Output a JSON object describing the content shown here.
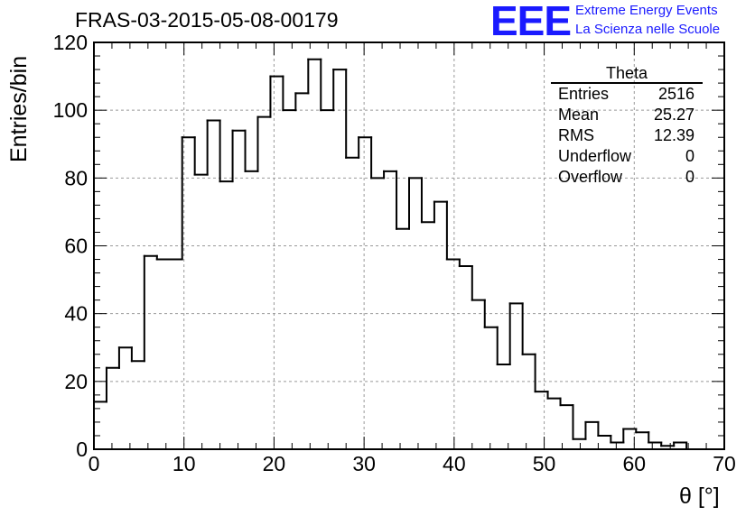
{
  "title": "FRAS-03-2015-05-08-00179",
  "logo": {
    "mark": "EEE",
    "line1": "Extreme Energy Events",
    "line2": "La Scienza nelle Scuole",
    "color": "#1a1aff"
  },
  "stats_box": {
    "title": "Theta",
    "rows": [
      {
        "label": "Entries",
        "value": "2516"
      },
      {
        "label": "Mean",
        "value": "25.27"
      },
      {
        "label": "RMS",
        "value": "12.39"
      },
      {
        "label": "Underflow",
        "value": "0"
      },
      {
        "label": "Overflow",
        "value": "0"
      }
    ]
  },
  "chart_data": {
    "type": "bar",
    "style": "step-histogram",
    "xlabel": "θ [°]",
    "ylabel": "Entries/bin",
    "xlim": [
      0,
      70
    ],
    "ylim": [
      0,
      120
    ],
    "bin_width": 1.4,
    "x_ticks": [
      0,
      10,
      20,
      30,
      40,
      50,
      60,
      70
    ],
    "y_ticks": [
      0,
      20,
      40,
      60,
      80,
      100,
      120
    ],
    "grid": true,
    "values": [
      14,
      24,
      30,
      26,
      57,
      56,
      56,
      92,
      81,
      97,
      79,
      94,
      82,
      98,
      110,
      100,
      105,
      115,
      100,
      112,
      86,
      92,
      80,
      82,
      65,
      80,
      67,
      73,
      56,
      54,
      44,
      36,
      25,
      43,
      28,
      17,
      15,
      13,
      3,
      8,
      4,
      2,
      6,
      5,
      2,
      1,
      2,
      0,
      0,
      0
    ],
    "line_color": "#000000"
  }
}
